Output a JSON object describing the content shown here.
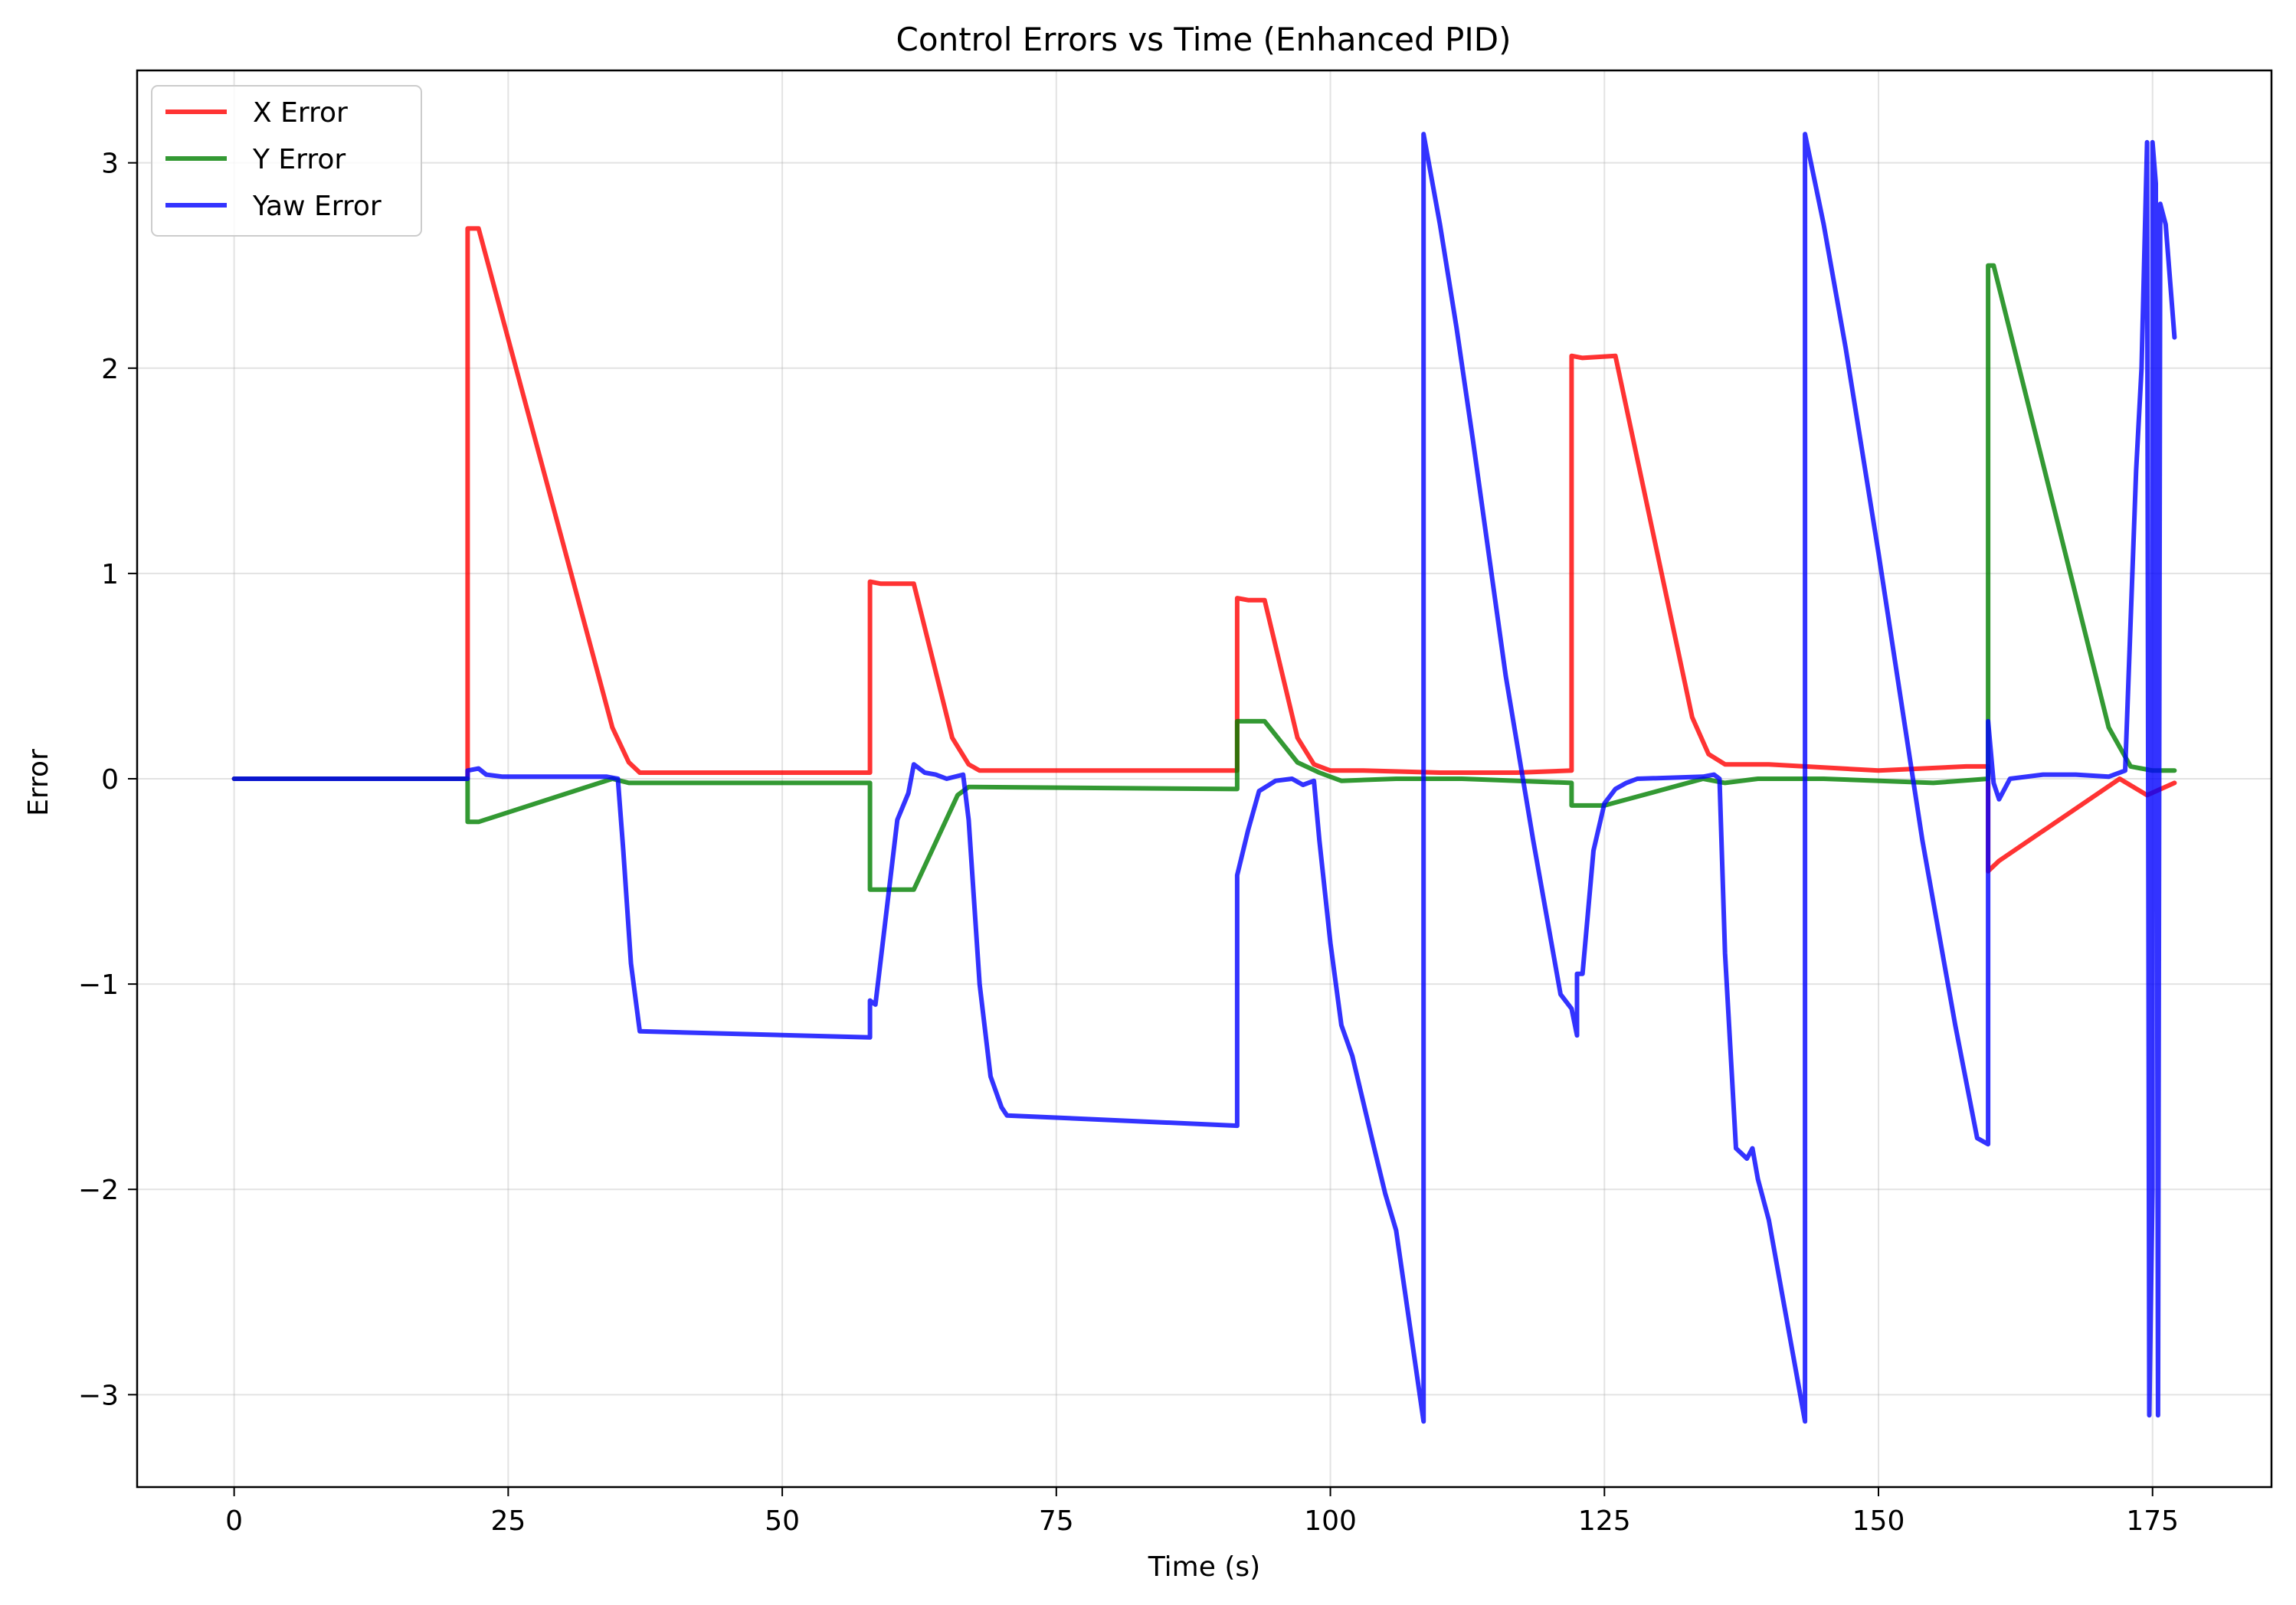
{
  "chart_data": {
    "type": "line",
    "title": "Control Errors vs Time (Enhanced PID)",
    "xlabel": "Time (s)",
    "ylabel": "Error",
    "xlim": [
      -8.85,
      185.85
    ],
    "ylim": [
      -3.45,
      3.45
    ],
    "x_ticks": [
      0,
      25,
      50,
      75,
      100,
      125,
      150,
      175
    ],
    "y_ticks": [
      -3,
      -2,
      -1,
      0,
      1,
      2,
      3
    ],
    "x_tick_labels": [
      "0",
      "25",
      "50",
      "75",
      "100",
      "125",
      "150",
      "175"
    ],
    "y_tick_labels": [
      "−3",
      "−2",
      "−1",
      "0",
      "1",
      "2",
      "3"
    ],
    "grid": true,
    "legend_position": "top-left",
    "series": [
      {
        "name": "X Error",
        "color": "#ff0000",
        "points": [
          [
            0,
            0
          ],
          [
            21.3,
            0
          ],
          [
            21.3,
            2.68
          ],
          [
            22.3,
            2.68
          ],
          [
            33,
            0.55
          ],
          [
            34.5,
            0.25
          ],
          [
            36,
            0.08
          ],
          [
            37,
            0.03
          ],
          [
            58,
            0.03
          ],
          [
            58,
            0.96
          ],
          [
            59,
            0.95
          ],
          [
            62,
            0.95
          ],
          [
            65.5,
            0.2
          ],
          [
            67,
            0.07
          ],
          [
            68,
            0.04
          ],
          [
            91.5,
            0.04
          ],
          [
            91.5,
            0.88
          ],
          [
            92.5,
            0.87
          ],
          [
            94,
            0.87
          ],
          [
            97,
            0.2
          ],
          [
            98.5,
            0.07
          ],
          [
            100,
            0.04
          ],
          [
            103,
            0.04
          ],
          [
            110,
            0.03
          ],
          [
            117,
            0.03
          ],
          [
            122,
            0.04
          ],
          [
            122,
            2.06
          ],
          [
            123,
            2.05
          ],
          [
            126,
            2.06
          ],
          [
            133,
            0.3
          ],
          [
            134.5,
            0.12
          ],
          [
            136,
            0.07
          ],
          [
            140,
            0.07
          ],
          [
            150,
            0.04
          ],
          [
            158,
            0.06
          ],
          [
            160,
            0.06
          ],
          [
            160,
            -0.45
          ],
          [
            161,
            -0.4
          ],
          [
            172,
            0
          ],
          [
            174.5,
            -0.08
          ],
          [
            177,
            -0.02
          ]
        ]
      },
      {
        "name": "Y Error",
        "color": "#008000",
        "points": [
          [
            0,
            0
          ],
          [
            21.3,
            0
          ],
          [
            21.3,
            -0.21
          ],
          [
            22.3,
            -0.21
          ],
          [
            34.5,
            0
          ],
          [
            36,
            -0.02
          ],
          [
            58,
            -0.02
          ],
          [
            58,
            -0.54
          ],
          [
            62,
            -0.54
          ],
          [
            66,
            -0.08
          ],
          [
            67,
            -0.04
          ],
          [
            91.5,
            -0.05
          ],
          [
            91.5,
            0.28
          ],
          [
            94,
            0.28
          ],
          [
            97,
            0.08
          ],
          [
            99,
            0.03
          ],
          [
            101,
            -0.01
          ],
          [
            106,
            0
          ],
          [
            112,
            0
          ],
          [
            122,
            -0.02
          ],
          [
            122,
            -0.13
          ],
          [
            125,
            -0.13
          ],
          [
            134,
            0
          ],
          [
            136,
            -0.02
          ],
          [
            139,
            0
          ],
          [
            145,
            0
          ],
          [
            155,
            -0.02
          ],
          [
            160,
            0
          ],
          [
            160,
            2.5
          ],
          [
            160.5,
            2.5
          ],
          [
            171,
            0.25
          ],
          [
            173,
            0.06
          ],
          [
            175,
            0.04
          ],
          [
            177,
            0.04
          ]
        ]
      },
      {
        "name": "Yaw Error",
        "color": "#0000ff",
        "points": [
          [
            0,
            0
          ],
          [
            21.3,
            0
          ],
          [
            21.3,
            0.04
          ],
          [
            22.3,
            0.05
          ],
          [
            23,
            0.02
          ],
          [
            24.5,
            0.01
          ],
          [
            34,
            0.01
          ],
          [
            35,
            0
          ],
          [
            35.5,
            -0.35
          ],
          [
            36.2,
            -0.9
          ],
          [
            37,
            -1.23
          ],
          [
            58,
            -1.26
          ],
          [
            58,
            -1.08
          ],
          [
            58.5,
            -1.1
          ],
          [
            59.5,
            -0.65
          ],
          [
            60.5,
            -0.2
          ],
          [
            61.5,
            -0.07
          ],
          [
            62,
            0.07
          ],
          [
            63,
            0.03
          ],
          [
            64,
            0.02
          ],
          [
            65,
            0
          ],
          [
            66.5,
            0.02
          ],
          [
            67,
            -0.2
          ],
          [
            68,
            -1.0
          ],
          [
            69,
            -1.45
          ],
          [
            70,
            -1.6
          ],
          [
            70.5,
            -1.64
          ],
          [
            91.5,
            -1.69
          ],
          [
            91.5,
            -0.47
          ],
          [
            92.5,
            -0.25
          ],
          [
            93.5,
            -0.06
          ],
          [
            95,
            -0.01
          ],
          [
            96.5,
            0
          ],
          [
            97.5,
            -0.03
          ],
          [
            98.5,
            -0.01
          ],
          [
            99,
            -0.3
          ],
          [
            100,
            -0.8
          ],
          [
            101,
            -1.2
          ],
          [
            102,
            -1.35
          ],
          [
            104,
            -1.8
          ],
          [
            105,
            -2.02
          ],
          [
            106,
            -2.2
          ],
          [
            108.5,
            -3.13
          ],
          [
            108.5,
            3.14
          ],
          [
            110,
            2.7
          ],
          [
            111.5,
            2.2
          ],
          [
            113,
            1.65
          ],
          [
            116,
            0.5
          ],
          [
            118.5,
            -0.3
          ],
          [
            121,
            -1.05
          ],
          [
            122,
            -1.12
          ],
          [
            122.5,
            -1.25
          ],
          [
            122.5,
            -0.95
          ],
          [
            123,
            -0.95
          ],
          [
            124,
            -0.35
          ],
          [
            125,
            -0.12
          ],
          [
            126,
            -0.05
          ],
          [
            127,
            -0.02
          ],
          [
            128,
            0
          ],
          [
            134,
            0.01
          ],
          [
            135,
            0.02
          ],
          [
            135.5,
            0
          ],
          [
            136,
            -0.85
          ],
          [
            137,
            -1.8
          ],
          [
            138,
            -1.85
          ],
          [
            138.5,
            -1.8
          ],
          [
            139,
            -1.95
          ],
          [
            140,
            -2.15
          ],
          [
            143.3,
            -3.13
          ],
          [
            143.3,
            3.14
          ],
          [
            145,
            2.7
          ],
          [
            147,
            2.1
          ],
          [
            150,
            1.1
          ],
          [
            154,
            -0.3
          ],
          [
            157,
            -1.2
          ],
          [
            159,
            -1.75
          ],
          [
            160,
            -1.78
          ],
          [
            160,
            0.28
          ],
          [
            160.5,
            -0.02
          ],
          [
            161,
            -0.1
          ],
          [
            162,
            0
          ],
          [
            165,
            0.02
          ],
          [
            168,
            0.02
          ],
          [
            171,
            0.01
          ],
          [
            172.5,
            0.04
          ],
          [
            173.5,
            1.5
          ],
          [
            174,
            2.0
          ],
          [
            174.5,
            3.1
          ],
          [
            174.7,
            -3.1
          ],
          [
            175,
            -2.0
          ],
          [
            175,
            3.1
          ],
          [
            175.3,
            2.9
          ],
          [
            175.5,
            -3.1
          ],
          [
            175.7,
            2.8
          ],
          [
            176.2,
            2.7
          ],
          [
            177,
            2.15
          ]
        ]
      }
    ]
  }
}
